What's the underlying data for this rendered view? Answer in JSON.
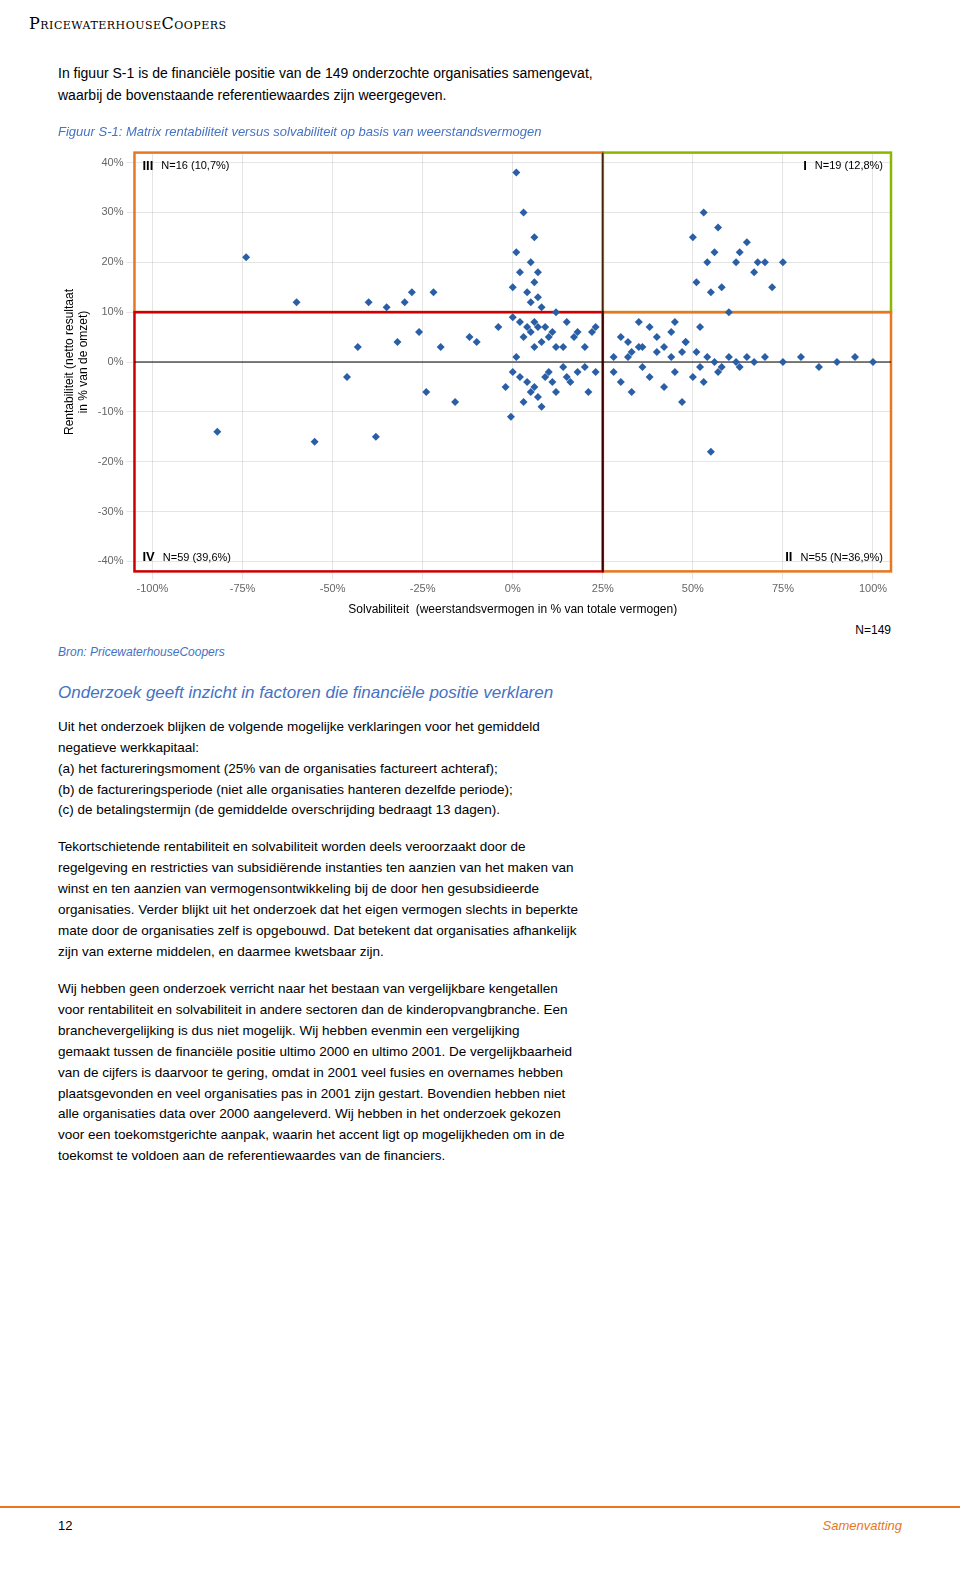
{
  "logo": "PricewaterhouseCoopers",
  "intro": "In figuur S-1 is de financiële positie van de 149 onderzochte organisaties samengevat,\nwaarbij de bovenstaande referentiewaardes zijn weergegeven.",
  "chart_data": {
    "type": "scatter",
    "title": "Figuur S-1: Matrix rentabiliteit versus solvabiliteit op basis van weerstandsvermogen",
    "xlabel": "Solvabiliteit  (weerstandsvermogen in % van totale vermogen)",
    "xlabel_right": "N=149",
    "ylabel": "Rentabiliteit (netto resultaat\nin % van de omzet)",
    "xlim": [
      -1.05,
      1.05
    ],
    "ylim": [
      -0.42,
      0.42
    ],
    "xticks": [
      {
        "value": -1,
        "label": "-100%"
      },
      {
        "value": -0.75,
        "label": "-75%"
      },
      {
        "value": -0.5,
        "label": "-50%"
      },
      {
        "value": -0.25,
        "label": "-25%"
      },
      {
        "value": 0,
        "label": "0%"
      },
      {
        "value": 0.25,
        "label": "25%"
      },
      {
        "value": 0.5,
        "label": "50%"
      },
      {
        "value": 0.75,
        "label": "75%"
      },
      {
        "value": 1,
        "label": "100%"
      }
    ],
    "yticks": [
      {
        "value": -0.4,
        "label": "-40%"
      },
      {
        "value": -0.3,
        "label": "-30%"
      },
      {
        "value": -0.2,
        "label": "-20%"
      },
      {
        "value": -0.1,
        "label": "-10%"
      },
      {
        "value": 0,
        "label": "0%"
      },
      {
        "value": 0.1,
        "label": "10%"
      },
      {
        "value": 0.2,
        "label": "20%"
      },
      {
        "value": 0.3,
        "label": "30%"
      },
      {
        "value": 0.4,
        "label": "40%"
      }
    ],
    "grid": true,
    "color": "#2b5fa5",
    "marker": "diamond",
    "x": [
      -0.82,
      -0.74,
      -0.6,
      -0.55,
      -0.46,
      -0.43,
      -0.4,
      -0.38,
      -0.35,
      -0.32,
      -0.3,
      -0.28,
      -0.26,
      -0.24,
      -0.22,
      -0.2,
      -0.16,
      -0.12,
      -0.1,
      -0.04,
      0.0,
      0.0,
      0.01,
      0.01,
      0.02,
      0.02,
      0.03,
      0.03,
      0.04,
      0.04,
      0.05,
      0.05,
      0.05,
      0.06,
      0.06,
      0.06,
      0.06,
      0.07,
      0.07,
      0.07,
      0.08,
      0.08,
      0.09,
      0.1,
      0.11,
      0.12,
      0.12,
      0.14,
      0.15,
      0.17,
      0.18,
      0.2,
      0.22,
      0.23,
      -0.005,
      -0.02,
      0.0,
      0.01,
      0.02,
      0.03,
      0.04,
      0.05,
      0.06,
      0.07,
      0.08,
      0.09,
      0.1,
      0.11,
      0.12,
      0.14,
      0.15,
      0.16,
      0.18,
      0.2,
      0.21,
      0.23,
      0.28,
      0.3,
      0.32,
      0.33,
      0.35,
      0.36,
      0.38,
      0.4,
      0.42,
      0.44,
      0.45,
      0.47,
      0.48,
      0.5,
      0.51,
      0.52,
      0.53,
      0.54,
      0.55,
      0.56,
      0.57,
      0.58,
      0.6,
      0.62,
      0.63,
      0.65,
      0.67,
      0.68,
      0.7,
      0.72,
      0.75,
      0.28,
      0.3,
      0.32,
      0.33,
      0.35,
      0.36,
      0.38,
      0.4,
      0.42,
      0.44,
      0.45,
      0.47,
      0.48,
      0.5,
      0.51,
      0.52,
      0.53,
      0.54,
      0.55,
      0.56,
      0.57,
      0.58,
      0.6,
      0.62,
      0.63,
      0.65,
      0.67,
      0.7,
      0.75,
      0.8,
      0.85,
      0.9,
      0.95,
      1.0
    ],
    "values": [
      -0.14,
      0.21,
      0.12,
      -0.16,
      -0.03,
      0.03,
      0.12,
      -0.15,
      0.11,
      0.04,
      0.12,
      0.14,
      0.06,
      -0.06,
      0.14,
      0.03,
      -0.08,
      0.05,
      0.04,
      0.07,
      0.15,
      0.09,
      0.22,
      0.38,
      0.18,
      0.08,
      0.3,
      0.05,
      0.14,
      0.07,
      0.2,
      0.12,
      0.06,
      0.25,
      0.16,
      0.08,
      0.03,
      0.18,
      0.13,
      0.07,
      0.11,
      0.04,
      0.07,
      0.05,
      0.06,
      0.1,
      0.03,
      0.03,
      0.08,
      0.05,
      0.06,
      0.03,
      0.06,
      0.07,
      -0.11,
      -0.05,
      -0.02,
      0.01,
      -0.03,
      -0.08,
      -0.04,
      -0.06,
      -0.05,
      -0.07,
      -0.09,
      -0.03,
      -0.02,
      -0.04,
      -0.06,
      -0.01,
      -0.03,
      -0.04,
      -0.02,
      -0.01,
      -0.06,
      -0.02,
      0.01,
      0.05,
      0.04,
      0.02,
      0.08,
      0.03,
      0.07,
      0.05,
      0.03,
      0.06,
      0.08,
      0.02,
      0.04,
      0.25,
      0.16,
      0.07,
      0.3,
      0.2,
      0.14,
      0.22,
      0.27,
      0.15,
      0.1,
      0.2,
      0.22,
      0.24,
      0.18,
      0.2,
      0.2,
      0.15,
      0.2,
      -0.02,
      -0.04,
      0.01,
      -0.06,
      0.03,
      -0.01,
      -0.03,
      0.02,
      -0.05,
      0.01,
      -0.02,
      -0.08,
      0.04,
      -0.03,
      0.02,
      -0.01,
      -0.04,
      0.01,
      -0.18,
      0.0,
      -0.02,
      -0.01,
      0.01,
      0.0,
      -0.01,
      0.01,
      0.0,
      0.01,
      0.0,
      0.01,
      -0.01,
      0.0,
      0.01,
      0.0
    ],
    "quadrants": [
      {
        "label": "I",
        "text": "N=19 (12,8%)",
        "color": "#8db600",
        "x": [
          0.25,
          1.05
        ],
        "y": [
          0.1,
          0.42
        ]
      },
      {
        "label": "II",
        "text": "N=55 (N=36,9%)",
        "color": "#e87722",
        "x": [
          0.25,
          1.05
        ],
        "y": [
          -0.42,
          0.1
        ]
      },
      {
        "label": "III",
        "text": "N=16 (10,7%)",
        "color": "#e87722",
        "x": [
          -1.05,
          0.25
        ],
        "y": [
          0.1,
          0.42
        ]
      },
      {
        "label": "IV",
        "text": "N=59 (39,6%)",
        "color": "#cc0000",
        "x": [
          -1.05,
          0.25
        ],
        "y": [
          -0.42,
          0.1
        ]
      }
    ],
    "reference_lines": [
      {
        "axis": "y",
        "value": 0
      },
      {
        "axis": "x",
        "value": 0.25
      }
    ]
  },
  "source": "Bron: PricewaterhouseCoopers",
  "section_heading": "Onderzoek geeft inzicht in factoren die financiële positie verklaren",
  "paragraphs": [
    "Uit het onderzoek blijken de volgende mogelijke verklaringen voor het gemiddeld\nnegatieve werkkapitaal:\n(a)  het factureringsmoment (25% van de organisaties factureert achteraf);\n(b)  de factureringsperiode (niet alle organisaties hanteren dezelfde periode);\n(c)  de betalingstermijn (de gemiddelde overschrijding bedraagt 13 dagen).",
    "Tekortschietende rentabiliteit en solvabiliteit worden deels veroorzaakt door de\nregelgeving en restricties van subsidiërende instanties ten aanzien van het maken van\nwinst en ten aanzien van vermogensontwikkeling bij de door hen gesubsidieerde\norganisaties. Verder blijkt uit het onderzoek dat het eigen vermogen slechts in beperkte\nmate door de organisaties zelf is opgebouwd. Dat betekent dat organisaties afhankelijk\nzijn van externe middelen, en daarmee kwetsbaar zijn.",
    "Wij hebben geen onderzoek verricht naar het bestaan van vergelijkbare kengetallen\nvoor rentabiliteit en solvabiliteit in andere sectoren dan de kinderopvangbranche. Een\nbranchevergelijking is dus niet mogelijk. Wij hebben evenmin een vergelijking\ngemaakt tussen de financiële positie ultimo 2000 en ultimo 2001. De vergelijkbaarheid\nvan de cijfers is daarvoor te gering, omdat in 2001 veel fusies en overnames hebben\nplaatsgevonden en veel organisaties pas in 2001 zijn gestart. Bovendien hebben niet\nalle organisaties data over 2000 aangeleverd. Wij hebben in het onderzoek gekozen\nvoor een toekomstgerichte aanpak, waarin het accent ligt op mogelijkheden om in de\ntoekomst te voldoen aan de referentiewaardes van de financiers."
  ],
  "page_number": "12",
  "page_right": "Samenvatting"
}
